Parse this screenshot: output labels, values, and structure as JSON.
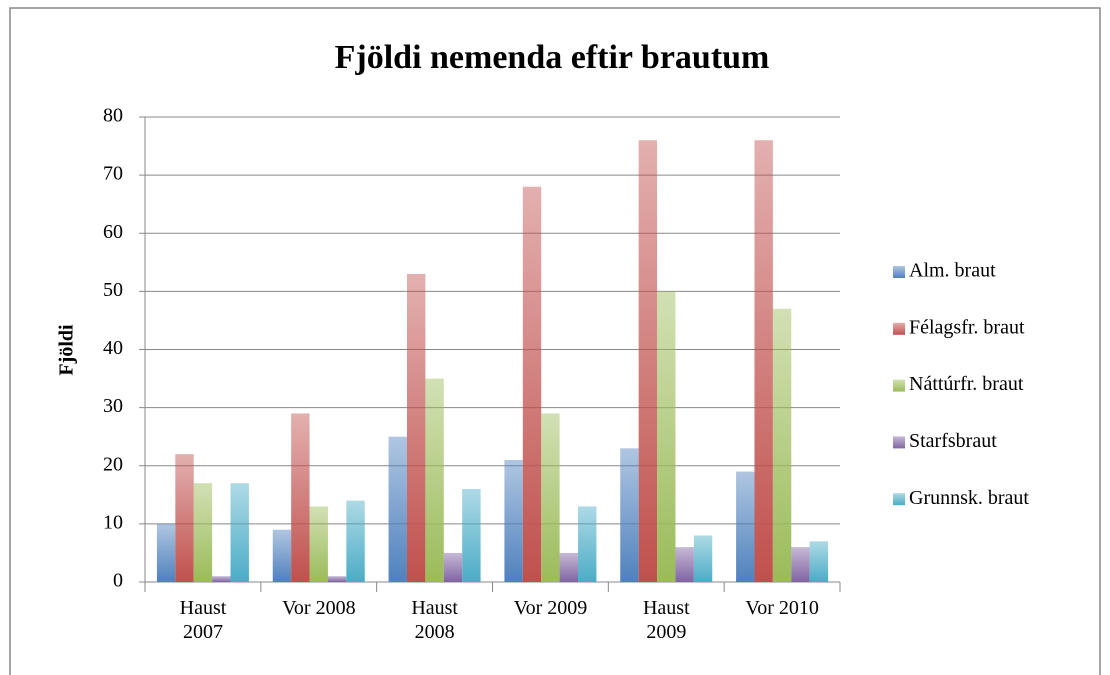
{
  "chart_data": {
    "type": "bar",
    "title": "Fjöldi nemenda eftir brautum",
    "y_label": "Fjöldi",
    "categories": [
      "Haust\n2007",
      "Vor 2008",
      "Haust\n2008",
      "Vor 2009",
      "Haust\n2009",
      "Vor 2010"
    ],
    "series": [
      {
        "name": "Alm. braut",
        "color": "#4f81bd",
        "values": [
          10,
          9,
          25,
          21,
          23,
          19
        ]
      },
      {
        "name": "Félagsfr. braut",
        "color": "#c0504d",
        "values": [
          22,
          29,
          53,
          68,
          76,
          76
        ]
      },
      {
        "name": "Náttúrfr. braut",
        "color": "#9bbb59",
        "values": [
          17,
          13,
          35,
          29,
          50,
          47
        ]
      },
      {
        "name": "Starfsbraut",
        "color": "#8064a2",
        "values": [
          1,
          1,
          5,
          5,
          6,
          6
        ]
      },
      {
        "name": "Grunnsk. braut",
        "color": "#4bacc6",
        "values": [
          17,
          14,
          16,
          13,
          8,
          7
        ]
      }
    ],
    "ylim": [
      0,
      80
    ],
    "yticks": [
      0,
      10,
      20,
      30,
      40,
      50,
      60,
      70,
      80
    ],
    "grid": true,
    "legend": "right"
  }
}
